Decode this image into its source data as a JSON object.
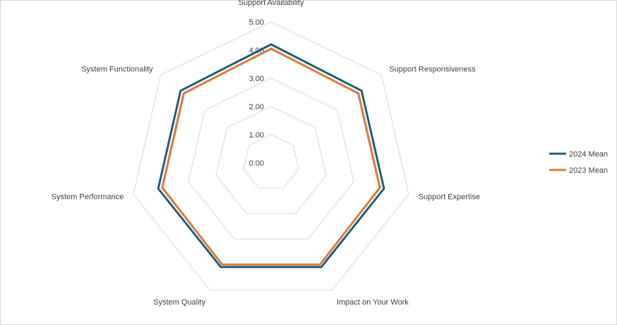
{
  "chart_data": {
    "type": "radar",
    "categories": [
      "Support Availability",
      "Support Responsiveness",
      "Support Expertise",
      "Impact on Your Work",
      "System Quality",
      "System Performance",
      "System Functionality"
    ],
    "series": [
      {
        "name": "2024 Mean",
        "color": "#1f5f7e",
        "values": [
          4.2,
          4.1,
          4.1,
          4.1,
          4.1,
          4.1,
          4.1
        ]
      },
      {
        "name": "2023 Mean",
        "color": "#e07b3c",
        "values": [
          4.05,
          3.95,
          3.95,
          4.0,
          4.0,
          3.95,
          3.95
        ]
      }
    ],
    "ticks": [
      "0.00",
      "1.00",
      "2.00",
      "3.00",
      "4.00",
      "5.00"
    ],
    "rmin": 0,
    "rmax": 5,
    "grid": true,
    "legend_position": "right"
  }
}
